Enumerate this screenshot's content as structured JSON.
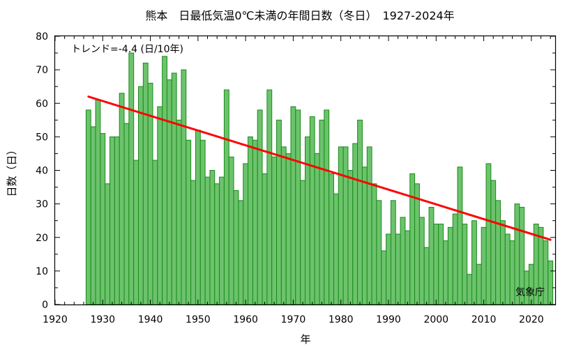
{
  "chart_data": {
    "type": "bar",
    "title": "熊本　日最低気温0℃未満の年間日数（冬日）　1927-2024年",
    "xlabel": "年",
    "ylabel": "日数（日）",
    "xlim": [
      1920,
      2025
    ],
    "ylim": [
      0,
      80
    ],
    "xticks": [
      1920,
      1930,
      1940,
      1950,
      1960,
      1970,
      1980,
      1990,
      2000,
      2010,
      2020
    ],
    "yticks": [
      0,
      10,
      20,
      30,
      40,
      50,
      60,
      70,
      80
    ],
    "grid": false,
    "bar_color": "#6cc36c",
    "bar_edge_color": "#1a8a1a",
    "trend_color": "#ff0000",
    "trend_label": "トレンド=-4.4 (日/10年)",
    "source_label": "気象庁",
    "trend": {
      "x": [
        1927,
        2024
      ],
      "y": [
        62,
        19.3
      ]
    },
    "x": [
      1927,
      1928,
      1929,
      1930,
      1931,
      1932,
      1933,
      1934,
      1935,
      1936,
      1937,
      1938,
      1939,
      1940,
      1941,
      1942,
      1943,
      1944,
      1945,
      1946,
      1947,
      1948,
      1949,
      1950,
      1951,
      1952,
      1953,
      1954,
      1955,
      1956,
      1957,
      1958,
      1959,
      1960,
      1961,
      1962,
      1963,
      1964,
      1965,
      1966,
      1967,
      1968,
      1969,
      1970,
      1971,
      1972,
      1973,
      1974,
      1975,
      1976,
      1977,
      1978,
      1979,
      1980,
      1981,
      1982,
      1983,
      1984,
      1985,
      1986,
      1987,
      1988,
      1989,
      1990,
      1991,
      1992,
      1993,
      1994,
      1995,
      1996,
      1997,
      1998,
      1999,
      2000,
      2001,
      2002,
      2003,
      2004,
      2005,
      2006,
      2007,
      2008,
      2009,
      2010,
      2011,
      2012,
      2013,
      2014,
      2015,
      2016,
      2017,
      2018,
      2019,
      2020,
      2021,
      2022,
      2023,
      2024
    ],
    "values": [
      58,
      53,
      61,
      51,
      36,
      50,
      50,
      63,
      54,
      75,
      43,
      65,
      72,
      66,
      43,
      59,
      74,
      67,
      69,
      55,
      70,
      49,
      37,
      52,
      49,
      38,
      40,
      36,
      38,
      64,
      44,
      34,
      31,
      42,
      50,
      49,
      58,
      39,
      64,
      44,
      55,
      47,
      45,
      59,
      58,
      37,
      50,
      56,
      45,
      55,
      58,
      39,
      33,
      47,
      47,
      40,
      48,
      55,
      41,
      47,
      36,
      31,
      16,
      21,
      31,
      21,
      26,
      22,
      39,
      36,
      26,
      17,
      29,
      24,
      24,
      19,
      23,
      27,
      41,
      24,
      9,
      25,
      12,
      23,
      42,
      37,
      31,
      25,
      21,
      19,
      30,
      29,
      10,
      12,
      24,
      23,
      19,
      13
    ]
  }
}
